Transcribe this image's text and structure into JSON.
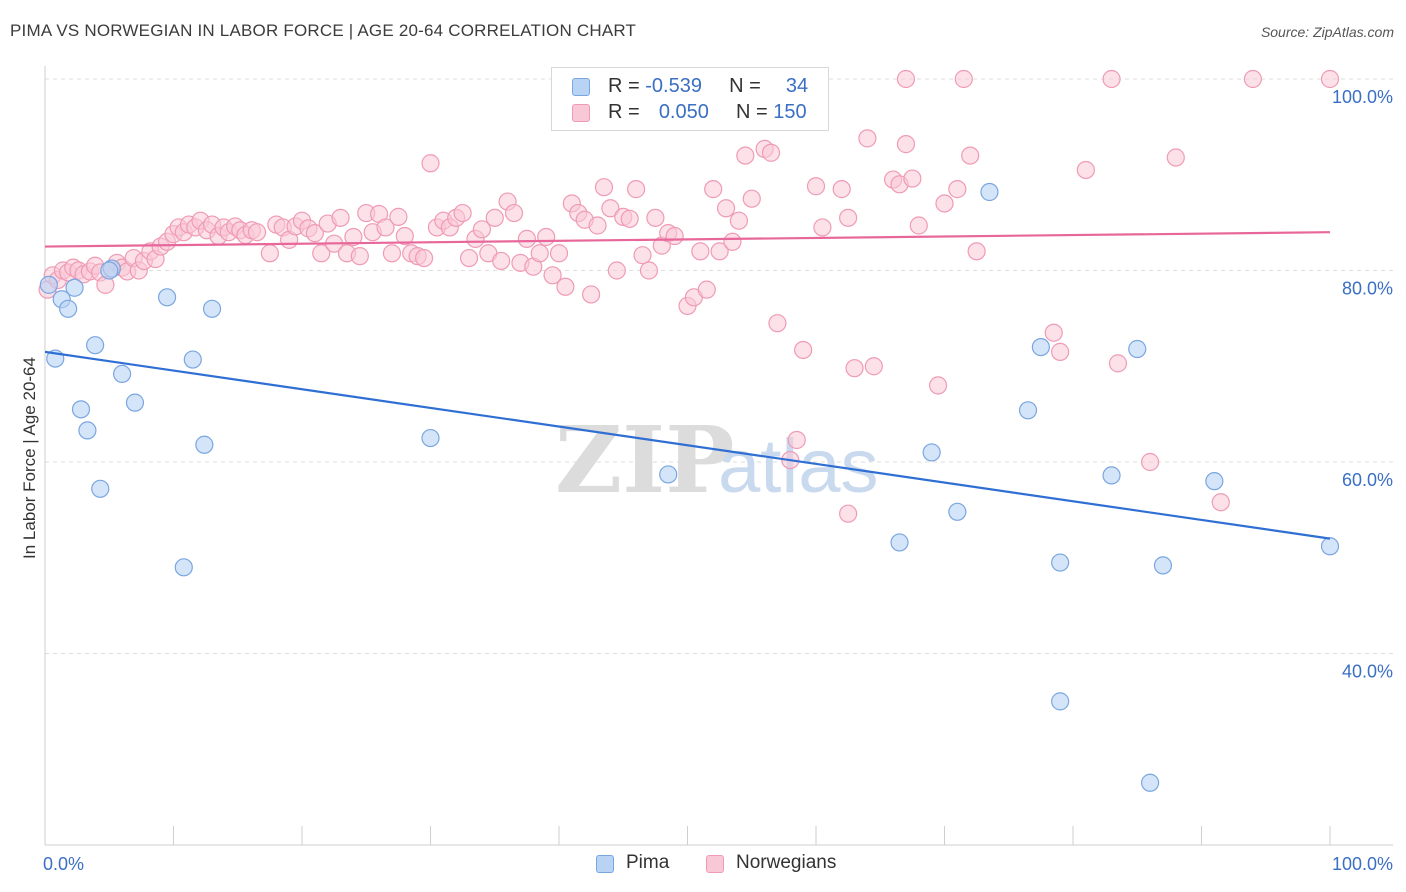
{
  "title": "PIMA VS NORWEGIAN IN LABOR FORCE | AGE 20-64 CORRELATION CHART",
  "source": "Source: ZipAtlas.com",
  "watermark": {
    "zip": "ZIP",
    "atlas": "atlas"
  },
  "legend_top": {
    "rows": [
      {
        "r_label": "R =",
        "r_value": "-0.539",
        "n_label": "N =",
        "n_value": "34"
      },
      {
        "r_label": "R =",
        "r_value": "0.050",
        "n_label": "N =",
        "n_value": "150"
      }
    ]
  },
  "legend_bottom": {
    "items": [
      "Pima",
      "Norwegians"
    ]
  },
  "colors": {
    "pima_fill": "#b9d3f5",
    "pima_stroke": "#7aa6e0",
    "pima_line": "#2f6fd4",
    "nor_fill": "#f9c8d6",
    "nor_stroke": "#ef9bb5",
    "nor_line": "#e8679a",
    "axis_text": "#3a6fc4",
    "grid": "#dddddd"
  },
  "chart_data": {
    "type": "scatter",
    "xlabel": "",
    "ylabel": "In Labor Force | Age 20-64",
    "x_tick_labels": [
      "0.0%",
      "100.0%"
    ],
    "y_tick_labels": [
      "100.0%",
      "80.0%",
      "60.0%",
      "40.0%"
    ],
    "xlim": [
      0,
      100
    ],
    "ylim": [
      20,
      102
    ],
    "series": [
      {
        "name": "Pima",
        "trend": [
          [
            0,
            71.5
          ],
          [
            100,
            52.0
          ]
        ],
        "points": [
          [
            0.8,
            70.8
          ],
          [
            1.3,
            77.0
          ],
          [
            1.8,
            76.0
          ],
          [
            2.3,
            78.2
          ],
          [
            2.8,
            65.5
          ],
          [
            3.3,
            63.3
          ],
          [
            3.9,
            72.2
          ],
          [
            4.3,
            57.2
          ],
          [
            5.2,
            80.2
          ],
          [
            6.0,
            69.2
          ],
          [
            7.0,
            66.2
          ],
          [
            9.5,
            77.2
          ],
          [
            10.8,
            49.0
          ],
          [
            11.5,
            70.7
          ],
          [
            12.4,
            61.8
          ],
          [
            13.0,
            76.0
          ],
          [
            30.0,
            62.5
          ],
          [
            48.5,
            58.7
          ],
          [
            66.5,
            51.6
          ],
          [
            69.0,
            61.0
          ],
          [
            71.0,
            54.8
          ],
          [
            73.5,
            88.2
          ],
          [
            76.5,
            65.4
          ],
          [
            77.5,
            72.0
          ],
          [
            79.0,
            35.0
          ],
          [
            79.0,
            49.5
          ],
          [
            83.0,
            58.6
          ],
          [
            85.0,
            71.8
          ],
          [
            86.0,
            26.5
          ],
          [
            87.0,
            49.2
          ],
          [
            91.0,
            58.0
          ],
          [
            100.0,
            51.2
          ],
          [
            0.3,
            78.5
          ],
          [
            5.0,
            80.0
          ]
        ]
      },
      {
        "name": "Norwegians",
        "trend": [
          [
            0,
            82.5
          ],
          [
            100,
            84.0
          ]
        ],
        "points": [
          [
            0.2,
            78.0
          ],
          [
            0.6,
            79.5
          ],
          [
            1.0,
            79.0
          ],
          [
            1.4,
            80.0
          ],
          [
            1.8,
            79.8
          ],
          [
            2.2,
            80.3
          ],
          [
            2.6,
            80.0
          ],
          [
            3.0,
            79.6
          ],
          [
            3.5,
            79.9
          ],
          [
            3.9,
            80.5
          ],
          [
            4.3,
            79.8
          ],
          [
            4.7,
            78.5
          ],
          [
            5.2,
            80.2
          ],
          [
            5.6,
            80.8
          ],
          [
            6.0,
            80.3
          ],
          [
            6.4,
            79.9
          ],
          [
            6.9,
            81.3
          ],
          [
            7.3,
            80.0
          ],
          [
            7.7,
            81.0
          ],
          [
            8.2,
            82.0
          ],
          [
            8.6,
            81.2
          ],
          [
            9.0,
            82.5
          ],
          [
            9.5,
            83.0
          ],
          [
            10.0,
            83.8
          ],
          [
            10.4,
            84.5
          ],
          [
            10.8,
            84.0
          ],
          [
            11.2,
            84.8
          ],
          [
            11.7,
            84.5
          ],
          [
            12.1,
            85.2
          ],
          [
            12.6,
            84.2
          ],
          [
            13.0,
            84.8
          ],
          [
            13.5,
            83.6
          ],
          [
            13.9,
            84.5
          ],
          [
            14.3,
            84.0
          ],
          [
            14.8,
            84.6
          ],
          [
            15.2,
            84.2
          ],
          [
            15.6,
            83.7
          ],
          [
            16.1,
            84.2
          ],
          [
            16.5,
            84.0
          ],
          [
            17.5,
            81.8
          ],
          [
            18.0,
            84.8
          ],
          [
            18.5,
            84.5
          ],
          [
            19.0,
            83.2
          ],
          [
            19.5,
            84.6
          ],
          [
            20.0,
            85.2
          ],
          [
            20.5,
            84.4
          ],
          [
            21.0,
            83.9
          ],
          [
            21.5,
            81.8
          ],
          [
            22.0,
            84.9
          ],
          [
            22.5,
            82.8
          ],
          [
            23.0,
            85.5
          ],
          [
            23.5,
            81.8
          ],
          [
            24.0,
            83.5
          ],
          [
            24.5,
            81.5
          ],
          [
            25.0,
            86.0
          ],
          [
            25.5,
            84.0
          ],
          [
            26.0,
            85.9
          ],
          [
            26.5,
            84.5
          ],
          [
            27.0,
            81.8
          ],
          [
            27.5,
            85.6
          ],
          [
            28.0,
            83.6
          ],
          [
            28.5,
            81.8
          ],
          [
            29.0,
            81.5
          ],
          [
            29.5,
            81.3
          ],
          [
            30.5,
            84.5
          ],
          [
            31.0,
            85.2
          ],
          [
            31.5,
            84.5
          ],
          [
            32.0,
            85.5
          ],
          [
            32.5,
            86.0
          ],
          [
            33.0,
            81.3
          ],
          [
            33.5,
            83.3
          ],
          [
            34.0,
            84.3
          ],
          [
            34.5,
            81.8
          ],
          [
            35.0,
            85.5
          ],
          [
            35.5,
            81.0
          ],
          [
            36.0,
            87.2
          ],
          [
            36.5,
            86.0
          ],
          [
            37.0,
            80.8
          ],
          [
            37.5,
            83.3
          ],
          [
            38.0,
            80.4
          ],
          [
            38.5,
            81.8
          ],
          [
            39.0,
            83.5
          ],
          [
            39.5,
            79.5
          ],
          [
            40.0,
            81.8
          ],
          [
            40.5,
            78.3
          ],
          [
            41.0,
            87.0
          ],
          [
            41.5,
            86.0
          ],
          [
            42.0,
            85.3
          ],
          [
            42.5,
            77.5
          ],
          [
            43.0,
            84.7
          ],
          [
            43.5,
            88.7
          ],
          [
            44.0,
            86.5
          ],
          [
            44.5,
            80.0
          ],
          [
            45.0,
            85.6
          ],
          [
            45.5,
            85.4
          ],
          [
            46.0,
            88.5
          ],
          [
            46.5,
            81.6
          ],
          [
            47.0,
            80.0
          ],
          [
            47.5,
            85.5
          ],
          [
            48.0,
            82.6
          ],
          [
            48.5,
            83.9
          ],
          [
            49.0,
            83.6
          ],
          [
            50.0,
            76.3
          ],
          [
            50.5,
            77.2
          ],
          [
            51.0,
            82.0
          ],
          [
            51.5,
            78.0
          ],
          [
            52.0,
            88.5
          ],
          [
            52.5,
            82.0
          ],
          [
            53.0,
            86.5
          ],
          [
            53.5,
            83.0
          ],
          [
            54.0,
            85.2
          ],
          [
            54.5,
            92.0
          ],
          [
            55.0,
            87.5
          ],
          [
            56.0,
            92.7
          ],
          [
            56.5,
            92.3
          ],
          [
            57.0,
            74.5
          ],
          [
            59.0,
            71.7
          ],
          [
            60.0,
            88.8
          ],
          [
            60.5,
            84.5
          ],
          [
            62.0,
            88.5
          ],
          [
            62.5,
            85.5
          ],
          [
            63.0,
            69.8
          ],
          [
            64.0,
            93.8
          ],
          [
            64.5,
            70.0
          ],
          [
            66.0,
            89.5
          ],
          [
            66.5,
            89.0
          ],
          [
            67.0,
            93.2
          ],
          [
            67.5,
            89.6
          ],
          [
            68.0,
            84.7
          ],
          [
            69.5,
            68.0
          ],
          [
            70.0,
            87.0
          ],
          [
            71.0,
            88.5
          ],
          [
            72.0,
            92.0
          ],
          [
            78.5,
            73.5
          ],
          [
            79.0,
            71.5
          ],
          [
            81.0,
            90.5
          ],
          [
            83.5,
            70.3
          ],
          [
            86.0,
            60.0
          ],
          [
            88.0,
            91.8
          ],
          [
            91.5,
            55.8
          ],
          [
            58.0,
            60.2
          ],
          [
            58.5,
            62.3
          ],
          [
            62.5,
            54.6
          ],
          [
            72.5,
            82.0
          ],
          [
            67.0,
            100.0
          ],
          [
            71.5,
            100.0
          ],
          [
            83.0,
            100.0
          ],
          [
            94.0,
            100.0
          ],
          [
            100.0,
            100.0
          ],
          [
            30.0,
            91.2
          ]
        ]
      }
    ]
  }
}
